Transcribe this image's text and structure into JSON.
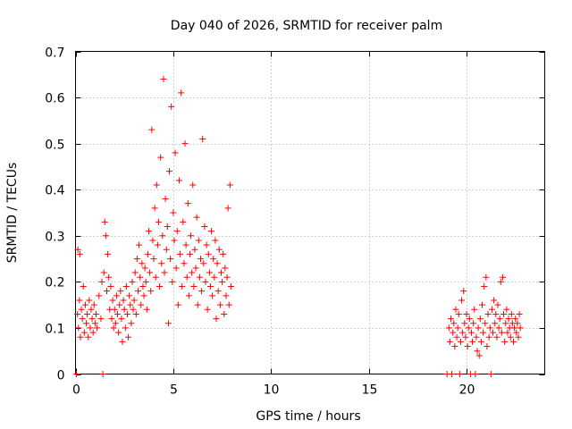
{
  "chart_data": {
    "type": "scatter",
    "title": "Day 040 of 2026, SRMTID for receiver palm",
    "xlabel": "GPS time / hours",
    "ylabel": "SRMTID / TECUs",
    "xlim": [
      0,
      24
    ],
    "ylim": [
      0,
      0.7
    ],
    "xticks": [
      0,
      5,
      10,
      15,
      20
    ],
    "yticks": [
      0,
      0.1,
      0.2,
      0.3,
      0.4,
      0.5,
      0.6,
      0.7
    ],
    "xtick_labels": [
      "0",
      "5",
      "10",
      "15",
      "20"
    ],
    "ytick_labels": [
      "0",
      "0.1",
      "0.2",
      "0.3",
      "0.4",
      "0.5",
      "0.6",
      "0.7"
    ],
    "grid": true,
    "marker": "+",
    "color": "#ff0000",
    "series": [
      {
        "name": "SRMTID",
        "points": [
          [
            0.05,
            0.0
          ],
          [
            0.1,
            0.13
          ],
          [
            0.12,
            0.27
          ],
          [
            0.15,
            0.1
          ],
          [
            0.2,
            0.16
          ],
          [
            0.22,
            0.26
          ],
          [
            0.25,
            0.08
          ],
          [
            0.3,
            0.14
          ],
          [
            0.35,
            0.12
          ],
          [
            0.4,
            0.19
          ],
          [
            0.45,
            0.09
          ],
          [
            0.5,
            0.15
          ],
          [
            0.55,
            0.11
          ],
          [
            0.6,
            0.13
          ],
          [
            0.65,
            0.08
          ],
          [
            0.7,
            0.16
          ],
          [
            0.75,
            0.1
          ],
          [
            0.8,
            0.14
          ],
          [
            0.85,
            0.12
          ],
          [
            0.9,
            0.09
          ],
          [
            0.95,
            0.15
          ],
          [
            1.0,
            0.11
          ],
          [
            1.05,
            0.13
          ],
          [
            1.1,
            0.1
          ],
          [
            1.2,
            0.17
          ],
          [
            1.3,
            0.12
          ],
          [
            1.35,
            0.2
          ],
          [
            1.4,
            0.0
          ],
          [
            1.45,
            0.22
          ],
          [
            1.5,
            0.33
          ],
          [
            1.55,
            0.3
          ],
          [
            1.6,
            0.18
          ],
          [
            1.65,
            0.26
          ],
          [
            1.7,
            0.21
          ],
          [
            1.75,
            0.14
          ],
          [
            1.8,
            0.19
          ],
          [
            1.85,
            0.12
          ],
          [
            1.9,
            0.16
          ],
          [
            1.95,
            0.1
          ],
          [
            2.0,
            0.14
          ],
          [
            2.05,
            0.11
          ],
          [
            2.1,
            0.17
          ],
          [
            2.15,
            0.13
          ],
          [
            2.2,
            0.09
          ],
          [
            2.25,
            0.15
          ],
          [
            2.3,
            0.18
          ],
          [
            2.35,
            0.12
          ],
          [
            2.4,
            0.07
          ],
          [
            2.45,
            0.16
          ],
          [
            2.5,
            0.14
          ],
          [
            2.55,
            0.1
          ],
          [
            2.6,
            0.19
          ],
          [
            2.65,
            0.13
          ],
          [
            2.7,
            0.08
          ],
          [
            2.75,
            0.17
          ],
          [
            2.8,
            0.15
          ],
          [
            2.85,
            0.11
          ],
          [
            2.9,
            0.2
          ],
          [
            2.95,
            0.14
          ],
          [
            3.0,
            0.16
          ],
          [
            3.05,
            0.22
          ],
          [
            3.1,
            0.13
          ],
          [
            3.15,
            0.25
          ],
          [
            3.2,
            0.18
          ],
          [
            3.25,
            0.28
          ],
          [
            3.3,
            0.21
          ],
          [
            3.35,
            0.15
          ],
          [
            3.4,
            0.24
          ],
          [
            3.45,
            0.19
          ],
          [
            3.5,
            0.17
          ],
          [
            3.55,
            0.23
          ],
          [
            3.6,
            0.2
          ],
          [
            3.65,
            0.14
          ],
          [
            3.7,
            0.26
          ],
          [
            3.75,
            0.31
          ],
          [
            3.8,
            0.22
          ],
          [
            3.85,
            0.18
          ],
          [
            3.9,
            0.53
          ],
          [
            3.95,
            0.29
          ],
          [
            4.0,
            0.25
          ],
          [
            4.05,
            0.36
          ],
          [
            4.1,
            0.21
          ],
          [
            4.15,
            0.41
          ],
          [
            4.2,
            0.28
          ],
          [
            4.25,
            0.33
          ],
          [
            4.3,
            0.19
          ],
          [
            4.35,
            0.47
          ],
          [
            4.4,
            0.24
          ],
          [
            4.45,
            0.3
          ],
          [
            4.5,
            0.64
          ],
          [
            4.55,
            0.22
          ],
          [
            4.6,
            0.38
          ],
          [
            4.65,
            0.27
          ],
          [
            4.7,
            0.32
          ],
          [
            4.75,
            0.11
          ],
          [
            4.8,
            0.44
          ],
          [
            4.85,
            0.25
          ],
          [
            4.9,
            0.58
          ],
          [
            4.95,
            0.2
          ],
          [
            5.0,
            0.35
          ],
          [
            5.05,
            0.29
          ],
          [
            5.1,
            0.48
          ],
          [
            5.15,
            0.23
          ],
          [
            5.2,
            0.31
          ],
          [
            5.25,
            0.15
          ],
          [
            5.3,
            0.42
          ],
          [
            5.35,
            0.26
          ],
          [
            5.4,
            0.61
          ],
          [
            5.45,
            0.19
          ],
          [
            5.5,
            0.33
          ],
          [
            5.55,
            0.24
          ],
          [
            5.6,
            0.5
          ],
          [
            5.65,
            0.28
          ],
          [
            5.7,
            0.21
          ],
          [
            5.75,
            0.37
          ],
          [
            5.8,
            0.17
          ],
          [
            5.85,
            0.26
          ],
          [
            5.9,
            0.3
          ],
          [
            5.95,
            0.22
          ],
          [
            6.0,
            0.41
          ],
          [
            6.05,
            0.19
          ],
          [
            6.1,
            0.27
          ],
          [
            6.15,
            0.23
          ],
          [
            6.2,
            0.34
          ],
          [
            6.25,
            0.15
          ],
          [
            6.3,
            0.29
          ],
          [
            6.35,
            0.21
          ],
          [
            6.4,
            0.25
          ],
          [
            6.45,
            0.18
          ],
          [
            6.5,
            0.51
          ],
          [
            6.55,
            0.24
          ],
          [
            6.6,
            0.32
          ],
          [
            6.65,
            0.2
          ],
          [
            6.7,
            0.28
          ],
          [
            6.75,
            0.14
          ],
          [
            6.8,
            0.26
          ],
          [
            6.85,
            0.22
          ],
          [
            6.9,
            0.19
          ],
          [
            6.95,
            0.31
          ],
          [
            7.0,
            0.17
          ],
          [
            7.05,
            0.25
          ],
          [
            7.1,
            0.21
          ],
          [
            7.15,
            0.29
          ],
          [
            7.2,
            0.12
          ],
          [
            7.25,
            0.24
          ],
          [
            7.3,
            0.18
          ],
          [
            7.35,
            0.27
          ],
          [
            7.4,
            0.15
          ],
          [
            7.45,
            0.22
          ],
          [
            7.5,
            0.2
          ],
          [
            7.55,
            0.26
          ],
          [
            7.6,
            0.13
          ],
          [
            7.65,
            0.23
          ],
          [
            7.7,
            0.17
          ],
          [
            7.75,
            0.21
          ],
          [
            7.8,
            0.36
          ],
          [
            7.85,
            0.15
          ],
          [
            7.9,
            0.41
          ],
          [
            7.95,
            0.19
          ],
          [
            19.0,
            0.0
          ],
          [
            19.1,
            0.1
          ],
          [
            19.15,
            0.07
          ],
          [
            19.2,
            0.12
          ],
          [
            19.25,
            0.0
          ],
          [
            19.3,
            0.09
          ],
          [
            19.35,
            0.11
          ],
          [
            19.4,
            0.06
          ],
          [
            19.45,
            0.14
          ],
          [
            19.5,
            0.08
          ],
          [
            19.55,
            0.1
          ],
          [
            19.6,
            0.13
          ],
          [
            19.65,
            0.0
          ],
          [
            19.7,
            0.07
          ],
          [
            19.75,
            0.16
          ],
          [
            19.8,
            0.09
          ],
          [
            19.85,
            0.18
          ],
          [
            19.9,
            0.11
          ],
          [
            19.95,
            0.08
          ],
          [
            20.0,
            0.13
          ],
          [
            20.05,
            0.06
          ],
          [
            20.1,
            0.1
          ],
          [
            20.15,
            0.12
          ],
          [
            20.2,
            0.0
          ],
          [
            20.25,
            0.09
          ],
          [
            20.3,
            0.07
          ],
          [
            20.35,
            0.11
          ],
          [
            20.4,
            0.14
          ],
          [
            20.45,
            0.0
          ],
          [
            20.5,
            0.08
          ],
          [
            20.55,
            0.05
          ],
          [
            20.6,
            0.1
          ],
          [
            20.65,
            0.04
          ],
          [
            20.7,
            0.12
          ],
          [
            20.75,
            0.07
          ],
          [
            20.8,
            0.15
          ],
          [
            20.85,
            0.09
          ],
          [
            20.9,
            0.19
          ],
          [
            20.95,
            0.11
          ],
          [
            21.0,
            0.21
          ],
          [
            21.05,
            0.06
          ],
          [
            21.1,
            0.13
          ],
          [
            21.15,
            0.08
          ],
          [
            21.2,
            0.1
          ],
          [
            21.25,
            0.0
          ],
          [
            21.3,
            0.14
          ],
          [
            21.35,
            0.09
          ],
          [
            21.4,
            0.16
          ],
          [
            21.45,
            0.11
          ],
          [
            21.5,
            0.13
          ],
          [
            21.55,
            0.08
          ],
          [
            21.6,
            0.15
          ],
          [
            21.65,
            0.1
          ],
          [
            21.7,
            0.12
          ],
          [
            21.75,
            0.2
          ],
          [
            21.8,
            0.09
          ],
          [
            21.85,
            0.21
          ],
          [
            21.9,
            0.13
          ],
          [
            21.95,
            0.07
          ],
          [
            22.0,
            0.11
          ],
          [
            22.05,
            0.14
          ],
          [
            22.1,
            0.09
          ],
          [
            22.15,
            0.12
          ],
          [
            22.2,
            0.1
          ],
          [
            22.25,
            0.08
          ],
          [
            22.3,
            0.13
          ],
          [
            22.35,
            0.11
          ],
          [
            22.4,
            0.07
          ],
          [
            22.45,
            0.1
          ],
          [
            22.5,
            0.12
          ],
          [
            22.55,
            0.09
          ],
          [
            22.6,
            0.11
          ],
          [
            22.65,
            0.08
          ],
          [
            22.7,
            0.13
          ],
          [
            22.75,
            0.1
          ]
        ]
      }
    ]
  }
}
